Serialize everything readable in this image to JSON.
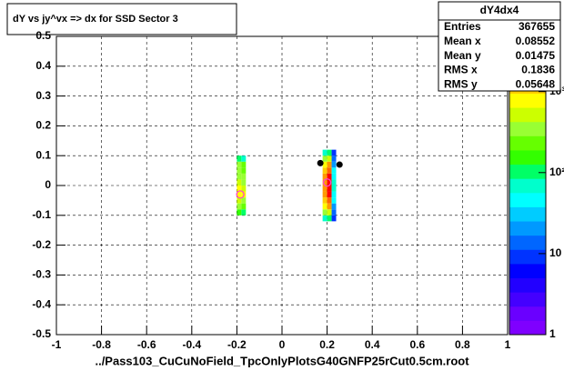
{
  "chart_data": {
    "type": "heatmap",
    "title": "dY vs    jy^vx         => dx for SSD Sector 3",
    "x_label": "../Pass103_CuCuNoField_TpcOnlyPlotsG40GNFP25rCut0.5cm.root",
    "xlim": [
      -1,
      1
    ],
    "ylim": [
      -0.5,
      0.5
    ],
    "zlim": [
      1,
      4800
    ],
    "log_z": true,
    "grid": true,
    "xticks": [
      -1,
      -0.8,
      -0.6,
      -0.4,
      -0.2,
      0,
      0.2,
      0.4,
      0.6,
      0.8,
      1
    ],
    "yticks": [
      -0.5,
      -0.4,
      -0.3,
      -0.2,
      -0.1,
      0,
      0.1,
      0.2,
      0.3,
      0.4,
      0.5
    ],
    "zticks": [
      1,
      10,
      {
        "value": 100,
        "label": "10²"
      },
      {
        "value": 1000,
        "label": "10³"
      }
    ],
    "palette": [
      "#7f00ff",
      "#6a00ff",
      "#4400ff",
      "#2200ff",
      "#0000ff",
      "#0033ff",
      "#0066ff",
      "#0099ff",
      "#00ccff",
      "#00ffff",
      "#00ffcc",
      "#00ff66",
      "#33ff00",
      "#66ff00",
      "#99ff33",
      "#ccff00",
      "#ffff00",
      "#ffcc00",
      "#ff9900",
      "#ff6600",
      "#ff0000"
    ],
    "cells": [
      {
        "x": [
          -0.2,
          -0.18
        ],
        "y": [
          -0.1,
          -0.08
        ],
        "z": 150
      },
      {
        "x": [
          -0.2,
          -0.18
        ],
        "y": [
          -0.08,
          -0.06
        ],
        "z": 300
      },
      {
        "x": [
          -0.2,
          -0.18
        ],
        "y": [
          -0.06,
          -0.04
        ],
        "z": 500
      },
      {
        "x": [
          -0.2,
          -0.18
        ],
        "y": [
          -0.04,
          -0.02
        ],
        "z": 900
      },
      {
        "x": [
          -0.2,
          -0.18
        ],
        "y": [
          -0.02,
          0
        ],
        "z": 700
      },
      {
        "x": [
          -0.2,
          -0.18
        ],
        "y": [
          0,
          0.02
        ],
        "z": 500
      },
      {
        "x": [
          -0.2,
          -0.18
        ],
        "y": [
          0.02,
          0.04
        ],
        "z": 400
      },
      {
        "x": [
          -0.2,
          -0.18
        ],
        "y": [
          0.04,
          0.06
        ],
        "z": 300
      },
      {
        "x": [
          -0.2,
          -0.18
        ],
        "y": [
          0.06,
          0.08
        ],
        "z": 350
      },
      {
        "x": [
          -0.2,
          -0.18
        ],
        "y": [
          0.08,
          0.1
        ],
        "z": 120
      },
      {
        "x": [
          -0.18,
          -0.16
        ],
        "y": [
          -0.1,
          -0.08
        ],
        "z": 100
      },
      {
        "x": [
          -0.18,
          -0.16
        ],
        "y": [
          -0.08,
          -0.06
        ],
        "z": 250
      },
      {
        "x": [
          -0.18,
          -0.16
        ],
        "y": [
          -0.06,
          -0.04
        ],
        "z": 400
      },
      {
        "x": [
          -0.18,
          -0.16
        ],
        "y": [
          -0.04,
          -0.02
        ],
        "z": 700
      },
      {
        "x": [
          -0.18,
          -0.16
        ],
        "y": [
          -0.02,
          0
        ],
        "z": 600
      },
      {
        "x": [
          -0.18,
          -0.16
        ],
        "y": [
          0,
          0.02
        ],
        "z": 400
      },
      {
        "x": [
          -0.18,
          -0.16
        ],
        "y": [
          0.02,
          0.04
        ],
        "z": 300
      },
      {
        "x": [
          -0.18,
          -0.16
        ],
        "y": [
          0.04,
          0.06
        ],
        "z": 200
      },
      {
        "x": [
          -0.18,
          -0.16
        ],
        "y": [
          0.06,
          0.08
        ],
        "z": 250
      },
      {
        "x": [
          -0.18,
          -0.16
        ],
        "y": [
          0.08,
          0.1
        ],
        "z": 80
      },
      {
        "x": [
          0.18,
          0.2
        ],
        "y": [
          -0.12,
          -0.1
        ],
        "z": 60
      },
      {
        "x": [
          0.18,
          0.2
        ],
        "y": [
          -0.1,
          -0.08
        ],
        "z": 300
      },
      {
        "x": [
          0.18,
          0.2
        ],
        "y": [
          -0.08,
          -0.06
        ],
        "z": 700
      },
      {
        "x": [
          0.18,
          0.2
        ],
        "y": [
          -0.06,
          -0.04
        ],
        "z": 1200
      },
      {
        "x": [
          0.18,
          0.2
        ],
        "y": [
          -0.04,
          -0.02
        ],
        "z": 1500
      },
      {
        "x": [
          0.18,
          0.2
        ],
        "y": [
          -0.02,
          0
        ],
        "z": 1800
      },
      {
        "x": [
          0.18,
          0.2
        ],
        "y": [
          0,
          0.02
        ],
        "z": 1800
      },
      {
        "x": [
          0.18,
          0.2
        ],
        "y": [
          0.02,
          0.04
        ],
        "z": 1500
      },
      {
        "x": [
          0.18,
          0.2
        ],
        "y": [
          0.04,
          0.06
        ],
        "z": 1200
      },
      {
        "x": [
          0.18,
          0.2
        ],
        "y": [
          0.06,
          0.08
        ],
        "z": 700
      },
      {
        "x": [
          0.18,
          0.2
        ],
        "y": [
          0.08,
          0.1
        ],
        "z": 300
      },
      {
        "x": [
          0.18,
          0.2
        ],
        "y": [
          0.1,
          0.12
        ],
        "z": 60
      },
      {
        "x": [
          0.2,
          0.22
        ],
        "y": [
          -0.12,
          -0.1
        ],
        "z": 100
      },
      {
        "x": [
          0.2,
          0.22
        ],
        "y": [
          -0.1,
          -0.08
        ],
        "z": 600
      },
      {
        "x": [
          0.2,
          0.22
        ],
        "y": [
          -0.08,
          -0.06
        ],
        "z": 1500
      },
      {
        "x": [
          0.2,
          0.22
        ],
        "y": [
          -0.06,
          -0.04
        ],
        "z": 3000
      },
      {
        "x": [
          0.2,
          0.22
        ],
        "y": [
          -0.04,
          -0.02
        ],
        "z": 4000
      },
      {
        "x": [
          0.2,
          0.22
        ],
        "y": [
          -0.02,
          0
        ],
        "z": 4500
      },
      {
        "x": [
          0.2,
          0.22
        ],
        "y": [
          0,
          0.02
        ],
        "z": 4500
      },
      {
        "x": [
          0.2,
          0.22
        ],
        "y": [
          0.02,
          0.04
        ],
        "z": 4000
      },
      {
        "x": [
          0.2,
          0.22
        ],
        "y": [
          0.04,
          0.06
        ],
        "z": 3000
      },
      {
        "x": [
          0.2,
          0.22
        ],
        "y": [
          0.06,
          0.08
        ],
        "z": 1500
      },
      {
        "x": [
          0.2,
          0.22
        ],
        "y": [
          0.08,
          0.1
        ],
        "z": 600
      },
      {
        "x": [
          0.2,
          0.22
        ],
        "y": [
          0.1,
          0.12
        ],
        "z": 100
      },
      {
        "x": [
          0.22,
          0.24
        ],
        "y": [
          -0.12,
          -0.1
        ],
        "z": 8
      },
      {
        "x": [
          0.22,
          0.24
        ],
        "y": [
          -0.1,
          -0.08
        ],
        "z": 15
      },
      {
        "x": [
          0.22,
          0.24
        ],
        "y": [
          -0.08,
          -0.06
        ],
        "z": 25
      },
      {
        "x": [
          0.22,
          0.24
        ],
        "y": [
          -0.06,
          -0.04
        ],
        "z": 40
      },
      {
        "x": [
          0.22,
          0.24
        ],
        "y": [
          -0.04,
          -0.02
        ],
        "z": 50
      },
      {
        "x": [
          0.22,
          0.24
        ],
        "y": [
          -0.02,
          0
        ],
        "z": 60
      },
      {
        "x": [
          0.22,
          0.24
        ],
        "y": [
          0,
          0.02
        ],
        "z": 60
      },
      {
        "x": [
          0.22,
          0.24
        ],
        "y": [
          0.02,
          0.04
        ],
        "z": 50
      },
      {
        "x": [
          0.22,
          0.24
        ],
        "y": [
          0.04,
          0.06
        ],
        "z": 40
      },
      {
        "x": [
          0.22,
          0.24
        ],
        "y": [
          0.06,
          0.08
        ],
        "z": 25
      },
      {
        "x": [
          0.22,
          0.24
        ],
        "y": [
          0.08,
          0.1
        ],
        "z": 15
      },
      {
        "x": [
          0.22,
          0.24
        ],
        "y": [
          0.1,
          0.12
        ],
        "z": 8
      }
    ],
    "points": {
      "color": "#000000",
      "x": [
        0.17,
        0.255
      ],
      "y": [
        0.075,
        0.07
      ]
    },
    "circles": {
      "color": "#ff44cc",
      "x": [
        -0.185,
        0.2
      ],
      "y": [
        -0.03,
        0.01
      ]
    },
    "stats": {
      "title": "dY4dx4",
      "rows": [
        [
          "Entries",
          "367655"
        ],
        [
          "Mean x",
          "0.08552"
        ],
        [
          "Mean y",
          "0.01475"
        ],
        [
          "RMS x",
          "0.1836"
        ],
        [
          "RMS y",
          "0.05648"
        ]
      ]
    }
  }
}
